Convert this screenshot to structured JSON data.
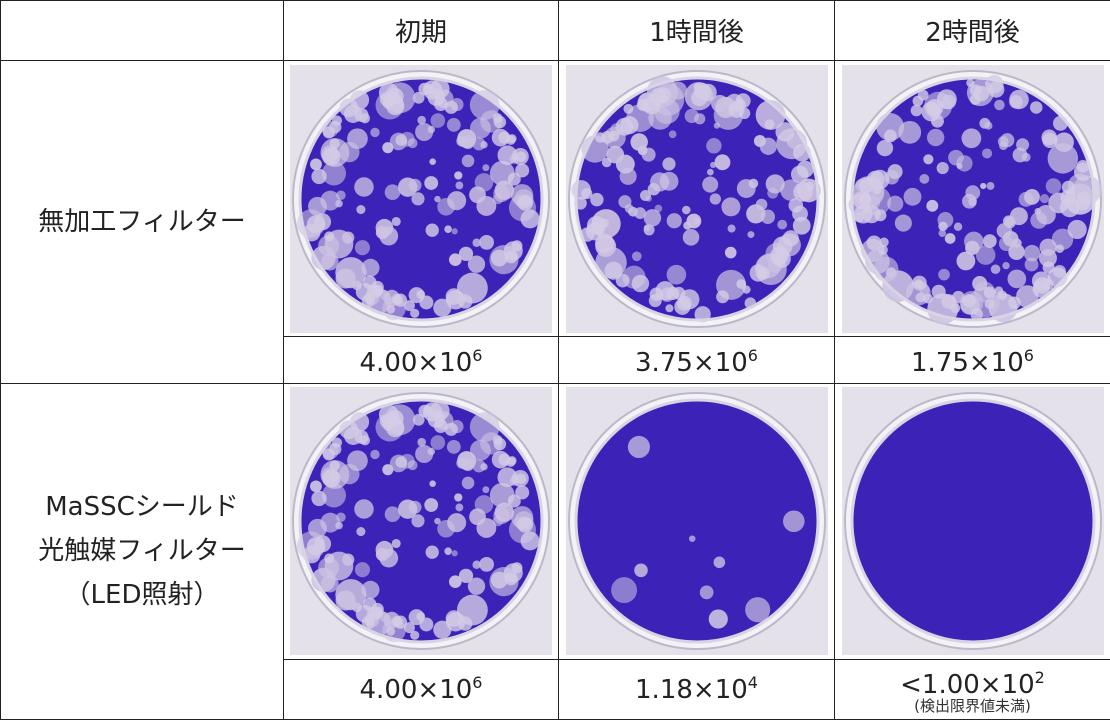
{
  "table": {
    "header": [
      "初期",
      "1時間後",
      "2時間後"
    ],
    "rows": [
      {
        "label": [
          "無加工フィルター"
        ],
        "values": [
          {
            "prefix": "4.00×10",
            "exponent": "6"
          },
          {
            "prefix": "3.75×10",
            "exponent": "6"
          },
          {
            "prefix": "1.75×10",
            "exponent": "6"
          }
        ]
      },
      {
        "label": [
          "MaSSCシールド",
          "光触媒フィルター",
          "（LED照射）"
        ],
        "values": [
          {
            "prefix": "4.00×10",
            "exponent": "6"
          },
          {
            "prefix": "1.18×10",
            "exponent": "4"
          },
          {
            "prefix": "<1.00×10",
            "exponent": "2",
            "note": "(検出限界値未満)"
          }
        ]
      }
    ]
  }
}
